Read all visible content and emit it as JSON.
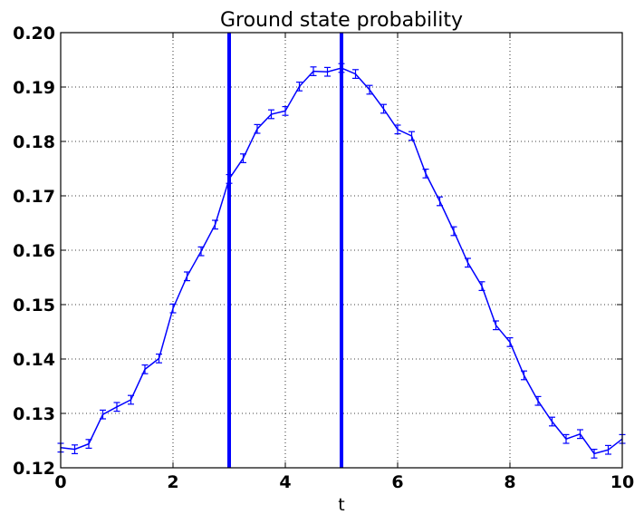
{
  "chart_data": {
    "type": "line",
    "title": "Ground state probability",
    "xlabel": "t",
    "ylabel": "",
    "xlim": [
      0,
      10
    ],
    "ylim": [
      0.12,
      0.2
    ],
    "xticks": [
      0,
      2,
      4,
      6,
      8,
      10
    ],
    "xtick_labels": [
      "0",
      "2",
      "4",
      "6",
      "8",
      "10"
    ],
    "yticks": [
      0.12,
      0.13,
      0.14,
      0.15,
      0.16,
      0.17,
      0.18,
      0.19,
      0.2
    ],
    "ytick_labels": [
      "0.12",
      "0.13",
      "0.14",
      "0.15",
      "0.16",
      "0.17",
      "0.18",
      "0.19",
      "0.20"
    ],
    "grid": true,
    "vertical_lines": [
      3,
      5
    ],
    "colors": {
      "series": "#0000ff",
      "vlines": "#0000ff"
    },
    "series": [
      {
        "x": [
          0,
          0.25,
          0.5,
          0.75,
          1.0,
          1.25,
          1.5,
          1.75,
          2.0,
          2.25,
          2.5,
          2.75,
          3.0,
          3.25,
          3.5,
          3.75,
          4.0,
          4.25,
          4.5,
          4.75,
          5.0,
          5.25,
          5.5,
          5.75,
          6.0,
          6.25,
          6.5,
          6.75,
          7.0,
          7.25,
          7.5,
          7.75,
          8.0,
          8.25,
          8.5,
          8.75,
          9.0,
          9.25,
          9.5,
          9.75,
          10.0
        ],
        "y": [
          0.1237,
          0.1234,
          0.1244,
          0.1298,
          0.1312,
          0.1325,
          0.1381,
          0.1401,
          0.1493,
          0.1552,
          0.1598,
          0.1647,
          0.1731,
          0.1769,
          0.1823,
          0.185,
          0.1856,
          0.1901,
          0.1929,
          0.1928,
          0.1935,
          0.1924,
          0.1895,
          0.186,
          0.1822,
          0.181,
          0.1741,
          0.169,
          0.1635,
          0.1577,
          0.1534,
          0.1462,
          0.1431,
          0.137,
          0.1323,
          0.1285,
          0.1253,
          0.1262,
          0.1226,
          0.1233,
          0.1253
        ],
        "err": [
          0.0008,
          0.0008,
          0.0008,
          0.0008,
          0.0008,
          0.0008,
          0.0008,
          0.0008,
          0.0008,
          0.0008,
          0.0008,
          0.0008,
          0.0008,
          0.0008,
          0.0008,
          0.0008,
          0.0008,
          0.0008,
          0.0008,
          0.0008,
          0.0008,
          0.0008,
          0.0008,
          0.0008,
          0.0008,
          0.0008,
          0.0008,
          0.0008,
          0.0008,
          0.0008,
          0.0008,
          0.0008,
          0.0008,
          0.0008,
          0.0008,
          0.0008,
          0.0008,
          0.0008,
          0.0008,
          0.0008,
          0.0008
        ]
      }
    ]
  }
}
